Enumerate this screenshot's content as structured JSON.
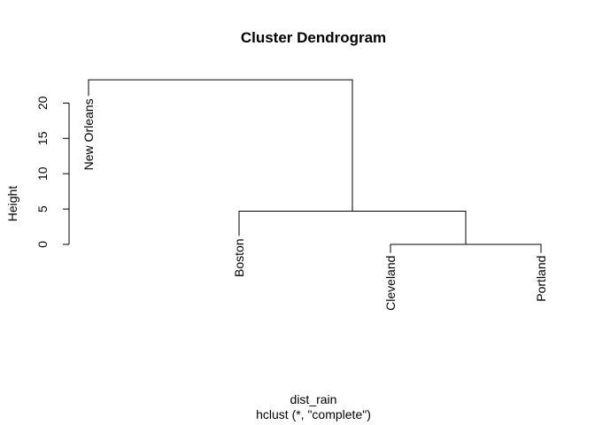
{
  "chart_data": {
    "type": "dendrogram",
    "title": "Cluster Dendrogram",
    "xlabel": "dist_rain",
    "sublabel": "hclust (*, \"complete\")",
    "ylabel": "Height",
    "yticks": [
      0,
      5,
      10,
      15,
      20
    ],
    "ylim": [
      0,
      23.3
    ],
    "leaves": [
      {
        "label": "New Orleans",
        "leaf_height": 21.0
      },
      {
        "label": "Boston",
        "leaf_height": 1.2
      },
      {
        "label": "Cleveland",
        "leaf_height": -1.2
      },
      {
        "label": "Portland",
        "leaf_height": -1.2
      }
    ],
    "merges": [
      {
        "left": 2,
        "right": 3,
        "height": 0.0
      },
      {
        "left": 1,
        "right": "m0",
        "height": 4.7
      },
      {
        "left": 0,
        "right": "m1",
        "height": 23.3
      }
    ]
  }
}
